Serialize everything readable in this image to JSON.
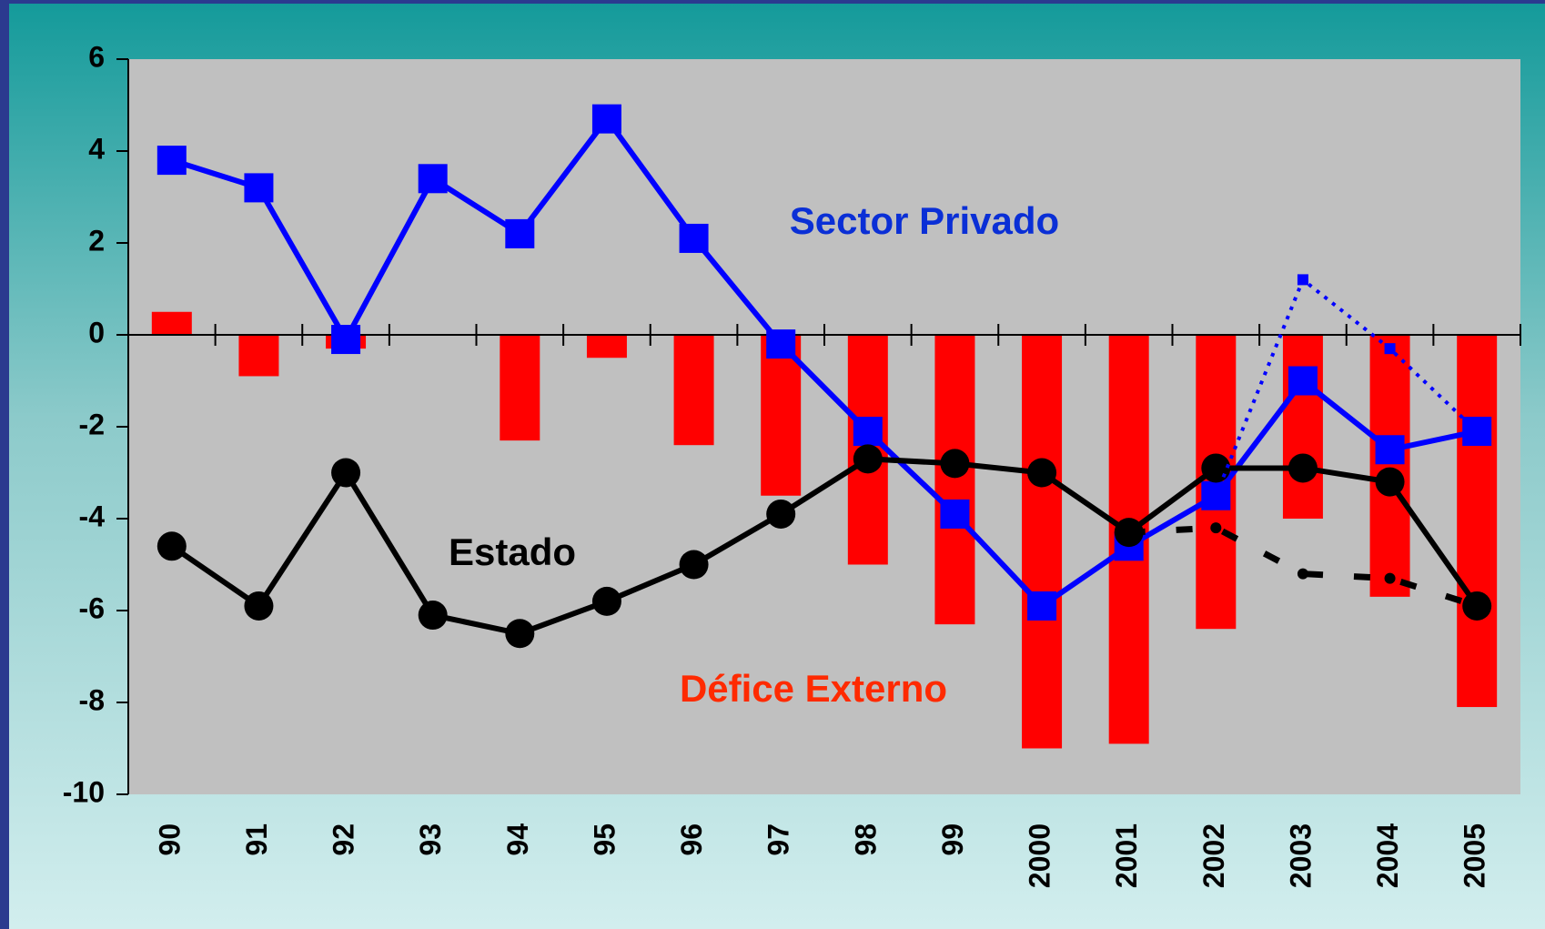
{
  "chart_data": {
    "type": "line",
    "categories": [
      "90",
      "91",
      "92",
      "93",
      "94",
      "95",
      "96",
      "97",
      "98",
      "99",
      "2000",
      "2001",
      "2002",
      "2003",
      "2004",
      "2005"
    ],
    "series": [
      {
        "name": "Défice Externo",
        "type": "bar",
        "color": "#ff0000",
        "values": [
          0.5,
          -0.9,
          -0.3,
          0,
          -2.3,
          -0.5,
          -2.4,
          -3.5,
          -5.0,
          -6.3,
          -9.0,
          -8.9,
          -6.4,
          -4.0,
          -5.7,
          -8.1
        ]
      },
      {
        "name": "Sector Privado",
        "type": "line",
        "color": "#0000ff",
        "marker": "square",
        "style": "solid",
        "values": [
          3.8,
          3.2,
          -0.1,
          3.4,
          2.2,
          4.7,
          2.1,
          -0.2,
          -2.1,
          -3.9,
          -5.9,
          -4.6,
          -3.5,
          -1.0,
          -2.5,
          -2.1
        ]
      },
      {
        "name": "Estado",
        "type": "line",
        "color": "#000000",
        "marker": "circle",
        "style": "solid",
        "values": [
          -4.6,
          -5.9,
          -3.0,
          -6.1,
          -6.5,
          -5.8,
          -5.0,
          -3.9,
          -2.7,
          -2.8,
          -3.0,
          -4.3,
          -2.9,
          -2.9,
          -3.2,
          -5.9
        ]
      },
      {
        "type": "line",
        "color": "#0000ff",
        "marker": "small-square",
        "style": "dotted",
        "values": [
          null,
          null,
          null,
          null,
          null,
          null,
          null,
          null,
          null,
          null,
          null,
          null,
          -3.5,
          1.2,
          -0.3,
          -2.1
        ]
      },
      {
        "type": "line",
        "color": "#000000",
        "marker": "small-circle",
        "style": "dashed",
        "values": [
          null,
          null,
          null,
          null,
          null,
          null,
          null,
          null,
          null,
          null,
          null,
          -4.3,
          -4.2,
          -5.2,
          -5.3,
          -5.9
        ]
      }
    ],
    "ylim": [
      -10,
      6
    ],
    "yticks": [
      -10,
      -8,
      -6,
      -4,
      -2,
      0,
      2,
      4,
      6
    ]
  }
}
